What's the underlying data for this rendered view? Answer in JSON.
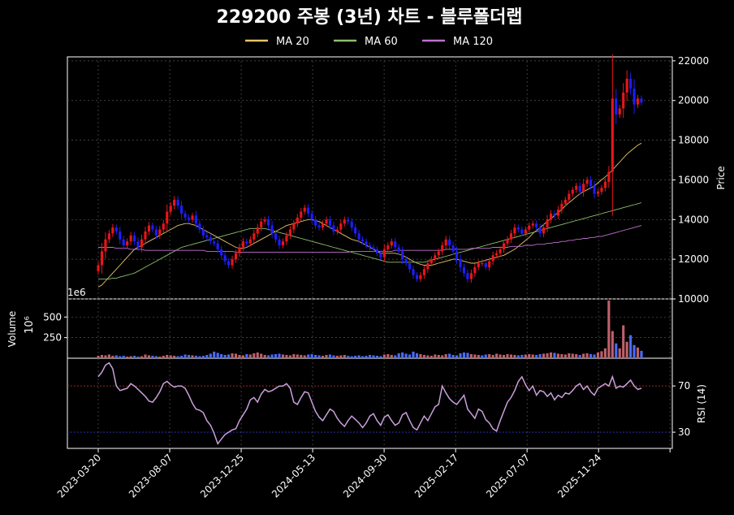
{
  "chart_data": {
    "type": "candlestick",
    "title": "229200 주봉 (3년) 차트 - 블루폴더랩",
    "legend": {
      "placement": "top-center",
      "items": [
        {
          "name": "MA 20",
          "color": "#e6c46a"
        },
        {
          "name": "MA 60",
          "color": "#8fbf6a"
        },
        {
          "name": "MA 120",
          "color": "#c070d0"
        }
      ]
    },
    "colors": {
      "up": "#e8161b",
      "down": "#1d1dff",
      "ma20": "#e6c46a",
      "ma60": "#8fbf6a",
      "ma120": "#c070d0",
      "rsi": "#c9a0dc",
      "rsi_upper": "#c0392b",
      "rsi_lower": "#3333cc",
      "vol_up": "#c0606a",
      "vol_down": "#4a6cff"
    },
    "x_ticks": [
      "2023-03-20",
      "2023-08-07",
      "2023-12-25",
      "2024-05-13",
      "2024-09-30",
      "2025-02-17",
      "2025-07-07",
      "2025-11-24"
    ],
    "x_range": [
      "2023-03-20",
      "2026-02-16"
    ],
    "price_panel": {
      "ylabel": "Price",
      "ylim": [
        10000,
        22200
      ],
      "ticks": [
        "10000",
        "12000",
        "14000",
        "16000",
        "18000",
        "20000",
        "22000"
      ],
      "grid": true,
      "close": [
        11700,
        12400,
        13000,
        13300,
        13600,
        13400,
        13000,
        12700,
        12900,
        13200,
        12900,
        12600,
        13000,
        13400,
        13700,
        13500,
        13200,
        13500,
        13800,
        14400,
        14700,
        15000,
        14700,
        14300,
        14100,
        14000,
        14200,
        13800,
        13500,
        13200,
        13100,
        12900,
        12800,
        12500,
        12200,
        11900,
        11700,
        12000,
        12300,
        12600,
        12900,
        12800,
        13000,
        13300,
        13600,
        13900,
        14000,
        13700,
        13300,
        13000,
        12700,
        12900,
        13200,
        13500,
        13800,
        14100,
        14400,
        14600,
        14300,
        14000,
        13700,
        13600,
        13800,
        14000,
        13700,
        13400,
        13500,
        13800,
        14000,
        13900,
        13600,
        13300,
        13000,
        12900,
        12700,
        12600,
        12500,
        12300,
        12100,
        12500,
        12700,
        12900,
        12600,
        12400,
        12000,
        11800,
        11500,
        11200,
        11000,
        11200,
        11500,
        11800,
        12000,
        12200,
        12400,
        12700,
        13000,
        12700,
        12400,
        12000,
        11600,
        11300,
        11000,
        11300,
        11600,
        11800,
        11800,
        11600,
        11900,
        12200,
        12300,
        12500,
        12800,
        13000,
        13300,
        13600,
        13500,
        13300,
        13500,
        13700,
        13800,
        13600,
        13300,
        13600,
        14000,
        14300,
        14200,
        14500,
        14800,
        15000,
        15300,
        15500,
        15700,
        15400,
        15800,
        16000,
        15700,
        15300,
        15400,
        15600,
        15900,
        16400,
        20100,
        19300,
        19600,
        20400,
        21100,
        20600,
        19800,
        20100,
        19900
      ],
      "ma20": [
        10600,
        10700,
        10900,
        11100,
        11300,
        11500,
        11700,
        11900,
        12100,
        12300,
        12500,
        12600,
        12700,
        12800,
        12900,
        13000,
        13100,
        13200,
        13300,
        13400,
        13500,
        13600,
        13700,
        13750,
        13800,
        13800,
        13750,
        13700,
        13600,
        13500,
        13400,
        13300,
        13200,
        13100,
        13000,
        12900,
        12800,
        12700,
        12600,
        12550,
        12550,
        12600,
        12700,
        12800,
        12900,
        13000,
        13100,
        13200,
        13300,
        13400,
        13500,
        13600,
        13700,
        13750,
        13800,
        13850,
        13900,
        13950,
        14000,
        14000,
        13950,
        13900,
        13800,
        13700,
        13600,
        13500,
        13400,
        13300,
        13200,
        13100,
        13000,
        12950,
        12900,
        12800,
        12700,
        12600,
        12500,
        12400,
        12300,
        12300,
        12300,
        12300,
        12300,
        12250,
        12200,
        12100,
        12000,
        11900,
        11800,
        11750,
        11700,
        11700,
        11700,
        11750,
        11800,
        11850,
        11900,
        11950,
        12000,
        12000,
        11950,
        11900,
        11850,
        11800,
        11800,
        11850,
        11900,
        11950,
        12000,
        12050,
        12100,
        12150,
        12200,
        12300,
        12400,
        12500,
        12650,
        12800,
        12950,
        13100,
        13300,
        13450,
        13600,
        13750,
        13900,
        14050,
        14200,
        14350,
        14500,
        14700,
        14850,
        15000,
        15150,
        15300,
        15400,
        15500,
        15600,
        15700,
        15850,
        16000,
        16150,
        16300,
        16500,
        16700,
        16900,
        17100,
        17300,
        17450,
        17600,
        17750,
        17850
      ],
      "ma60": [
        11000,
        11000,
        11000,
        11000,
        11050,
        11050,
        11100,
        11150,
        11200,
        11250,
        11300,
        11400,
        11500,
        11600,
        11700,
        11800,
        11900,
        12000,
        12100,
        12200,
        12300,
        12400,
        12500,
        12600,
        12650,
        12700,
        12750,
        12800,
        12850,
        12900,
        12950,
        13000,
        13050,
        13100,
        13150,
        13200,
        13250,
        13300,
        13350,
        13400,
        13450,
        13500,
        13550,
        13550,
        13550,
        13550,
        13550,
        13500,
        13450,
        13400,
        13350,
        13300,
        13250,
        13200,
        13150,
        13100,
        13050,
        13000,
        12950,
        12900,
        12850,
        12800,
        12750,
        12700,
        12650,
        12600,
        12550,
        12500,
        12450,
        12400,
        12350,
        12300,
        12250,
        12200,
        12150,
        12100,
        12050,
        12000,
        11950,
        11900,
        11850,
        11850,
        11850,
        11850,
        11850,
        11850,
        11850,
        11850,
        11850,
        11850,
        11850,
        11900,
        11950,
        12000,
        12050,
        12100,
        12150,
        12200,
        12250,
        12300,
        12350,
        12400,
        12450,
        12500,
        12550,
        12600,
        12650,
        12700,
        12750,
        12800,
        12850,
        12900,
        12950,
        13000,
        13050,
        13100,
        13150,
        13200,
        13250,
        13300,
        13350,
        13400,
        13450,
        13500,
        13550,
        13600,
        13650,
        13700,
        13750,
        13800,
        13850,
        13900,
        13950,
        14000,
        14050,
        14100,
        14150,
        14200,
        14250,
        14300,
        14350,
        14400,
        14450,
        14500,
        14550,
        14600,
        14650,
        14700,
        14750,
        14800,
        14850
      ],
      "ma120": [
        12600,
        12600,
        12600,
        12600,
        12600,
        12550,
        12550,
        12550,
        12550,
        12500,
        12500,
        12500,
        12500,
        12450,
        12450,
        12450,
        12450,
        12450,
        12450,
        12450,
        12450,
        12450,
        12450,
        12450,
        12450,
        12450,
        12450,
        12450,
        12450,
        12450,
        12400,
        12400,
        12400,
        12400,
        12400,
        12400,
        12400,
        12400,
        12350,
        12350,
        12350,
        12350,
        12350,
        12350,
        12350,
        12350,
        12350,
        12350,
        12350,
        12350,
        12350,
        12350,
        12350,
        12350,
        12350,
        12350,
        12350,
        12350,
        12350,
        12350,
        12350,
        12350,
        12350,
        12350,
        12350,
        12350,
        12350,
        12350,
        12350,
        12350,
        12400,
        12400,
        12400,
        12400,
        12400,
        12400,
        12400,
        12400,
        12400,
        12400,
        12400,
        12400,
        12450,
        12450,
        12450,
        12450,
        12450,
        12450,
        12450,
        12450,
        12450,
        12450,
        12450,
        12450,
        12450,
        12450,
        12500,
        12500,
        12500,
        12500,
        12500,
        12500,
        12500,
        12550,
        12550,
        12550,
        12550,
        12550,
        12550,
        12600,
        12600,
        12600,
        12600,
        12600,
        12650,
        12650,
        12650,
        12650,
        12700,
        12700,
        12700,
        12750,
        12750,
        12750,
        12800,
        12800,
        12850,
        12850,
        12900,
        12900,
        12950,
        12950,
        13000,
        13000,
        13050,
        13050,
        13100,
        13100,
        13150,
        13150,
        13200,
        13250,
        13300,
        13350,
        13400,
        13450,
        13500,
        13550,
        13600,
        13650,
        13700
      ]
    },
    "volume_panel": {
      "ylabel": "Volume",
      "scale_label": "1e6",
      "unit_label": "10⁶",
      "ylim": [
        0,
        720
      ],
      "ticks": [
        "250",
        "500"
      ],
      "values": [
        30,
        40,
        35,
        45,
        30,
        35,
        25,
        30,
        20,
        25,
        30,
        20,
        25,
        45,
        35,
        30,
        25,
        20,
        30,
        40,
        35,
        30,
        25,
        30,
        45,
        40,
        35,
        30,
        25,
        30,
        40,
        55,
        80,
        65,
        50,
        40,
        45,
        60,
        55,
        40,
        35,
        50,
        45,
        60,
        70,
        55,
        40,
        35,
        45,
        50,
        55,
        45,
        40,
        35,
        50,
        45,
        40,
        35,
        45,
        50,
        40,
        35,
        30,
        40,
        45,
        35,
        30,
        35,
        40,
        30,
        25,
        30,
        35,
        25,
        30,
        40,
        35,
        30,
        25,
        45,
        50,
        40,
        35,
        60,
        70,
        55,
        45,
        80,
        60,
        50,
        40,
        35,
        30,
        45,
        40,
        35,
        50,
        55,
        40,
        35,
        60,
        70,
        65,
        50,
        45,
        40,
        35,
        45,
        50,
        40,
        55,
        45,
        40,
        50,
        45,
        40,
        35,
        40,
        45,
        50,
        45,
        40,
        50,
        55,
        60,
        70,
        65,
        55,
        50,
        45,
        60,
        55,
        50,
        40,
        55,
        60,
        50,
        45,
        70,
        85,
        120,
        700,
        330,
        180,
        120,
        400,
        200,
        280,
        160,
        130,
        90
      ],
      "up": [
        1,
        1,
        1,
        1,
        1,
        0,
        0,
        0,
        1,
        1,
        0,
        0,
        1,
        1,
        1,
        0,
        0,
        1,
        1,
        1,
        1,
        1,
        0,
        0,
        0,
        0,
        1,
        0,
        0,
        0,
        0,
        0,
        0,
        0,
        0,
        0,
        0,
        1,
        1,
        1,
        1,
        0,
        1,
        1,
        1,
        1,
        1,
        0,
        0,
        0,
        0,
        1,
        1,
        1,
        1,
        1,
        1,
        1,
        0,
        0,
        0,
        0,
        1,
        1,
        0,
        0,
        1,
        1,
        1,
        0,
        0,
        0,
        0,
        0,
        0,
        0,
        0,
        0,
        0,
        1,
        1,
        1,
        0,
        0,
        0,
        0,
        0,
        0,
        0,
        1,
        1,
        1,
        1,
        1,
        1,
        1,
        1,
        0,
        0,
        0,
        0,
        0,
        0,
        1,
        1,
        1,
        0,
        0,
        1,
        1,
        1,
        1,
        1,
        1,
        1,
        1,
        0,
        0,
        1,
        1,
        1,
        0,
        0,
        1,
        1,
        1,
        0,
        1,
        1,
        1,
        1,
        1,
        1,
        0,
        1,
        1,
        0,
        0,
        1,
        1,
        1,
        1,
        1,
        0,
        1,
        1,
        1,
        0,
        0,
        1,
        0
      ]
    },
    "rsi_panel": {
      "ylabel": "RSI (14)",
      "ylim": [
        16,
        94
      ],
      "ticks": [
        "30",
        "70"
      ],
      "upper": 70,
      "lower": 30,
      "values": [
        78,
        82,
        88,
        90,
        85,
        70,
        66,
        67,
        68,
        72,
        70,
        67,
        64,
        61,
        57,
        56,
        60,
        65,
        72,
        74,
        71,
        69,
        70,
        70,
        68,
        62,
        55,
        50,
        49,
        47,
        40,
        36,
        29,
        20,
        24,
        28,
        30,
        32,
        33,
        40,
        45,
        50,
        58,
        60,
        56,
        63,
        67,
        65,
        66,
        68,
        70,
        70,
        72,
        68,
        56,
        54,
        60,
        65,
        64,
        56,
        48,
        43,
        40,
        45,
        50,
        48,
        42,
        38,
        35,
        40,
        44,
        41,
        38,
        34,
        38,
        44,
        46,
        40,
        36,
        43,
        45,
        40,
        36,
        38,
        45,
        47,
        40,
        34,
        32,
        38,
        44,
        40,
        46,
        52,
        54,
        70,
        64,
        59,
        56,
        54,
        58,
        62,
        50,
        46,
        42,
        50,
        48,
        41,
        38,
        33,
        31,
        40,
        48,
        56,
        60,
        66,
        74,
        78,
        71,
        66,
        70,
        62,
        66,
        65,
        61,
        64,
        58,
        62,
        60,
        64,
        63,
        66,
        70,
        72,
        67,
        70,
        65,
        62,
        68,
        70,
        72,
        70,
        78,
        68,
        70,
        69,
        72,
        75,
        70,
        67,
        68
      ]
    }
  }
}
